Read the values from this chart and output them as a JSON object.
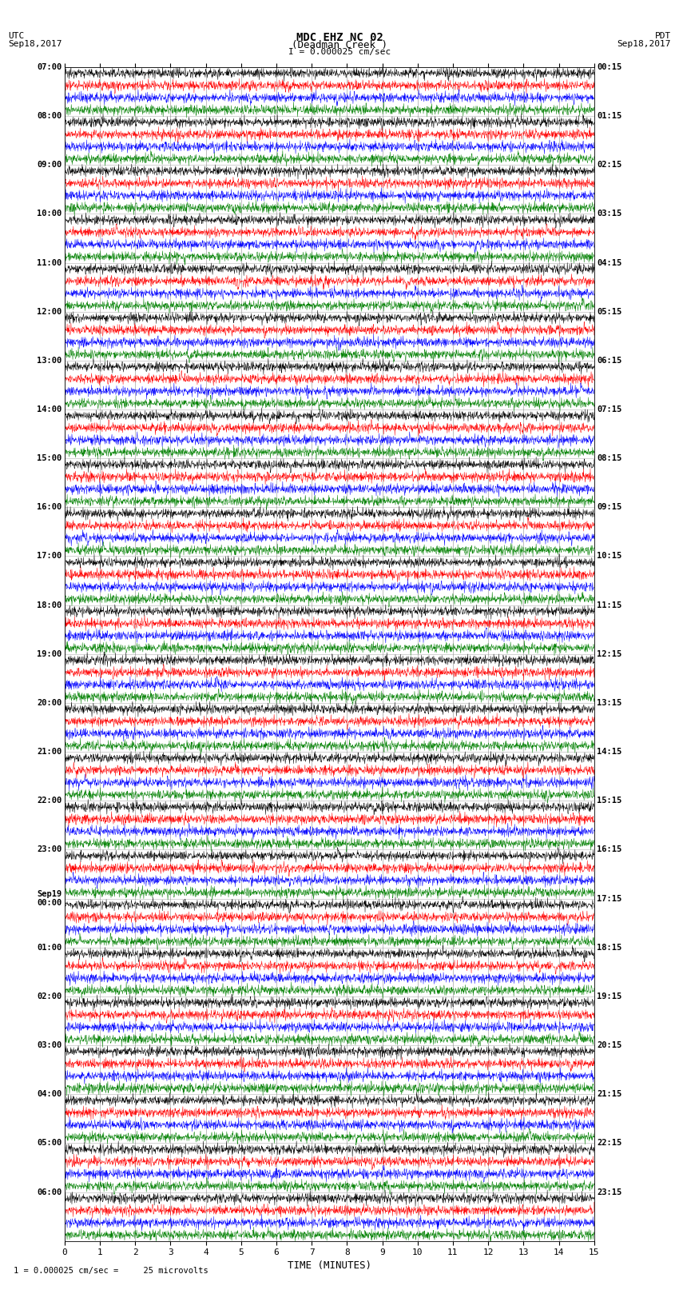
{
  "title_line1": "MDC EHZ NC 02",
  "title_line2": "(Deadman Creek )",
  "scale_text": "I = 0.000025 cm/sec",
  "utc_label": "UTC",
  "utc_date": "Sep18,2017",
  "pdt_label": "PDT",
  "pdt_date": "Sep18,2017",
  "xlabel": "TIME (MINUTES)",
  "footer_text": "1 = 0.000025 cm/sec =     25 microvolts",
  "left_times_labels": [
    "07:00",
    "08:00",
    "09:00",
    "10:00",
    "11:00",
    "12:00",
    "13:00",
    "14:00",
    "15:00",
    "16:00",
    "17:00",
    "18:00",
    "19:00",
    "20:00",
    "21:00",
    "22:00",
    "23:00",
    "Sep19\n00:00",
    "01:00",
    "02:00",
    "03:00",
    "04:00",
    "05:00",
    "06:00"
  ],
  "right_times_labels": [
    "00:15",
    "01:15",
    "02:15",
    "03:15",
    "04:15",
    "05:15",
    "06:15",
    "07:15",
    "08:15",
    "09:15",
    "10:15",
    "11:15",
    "12:15",
    "13:15",
    "14:15",
    "15:15",
    "16:15",
    "17:15",
    "18:15",
    "19:15",
    "20:15",
    "21:15",
    "22:15",
    "23:15"
  ],
  "colors": [
    "black",
    "red",
    "blue",
    "green"
  ],
  "n_hours": 24,
  "traces_per_hour": 4,
  "n_minutes": 15,
  "bg_color": "#ffffff",
  "grid_color": "#808080",
  "xticks": [
    0,
    1,
    2,
    3,
    4,
    5,
    6,
    7,
    8,
    9,
    10,
    11,
    12,
    13,
    14,
    15
  ],
  "figsize": [
    8.5,
    16.13
  ],
  "dpi": 100,
  "amplitude_profile": [
    0.06,
    0.07,
    0.07,
    0.06,
    0.07,
    0.07,
    0.08,
    0.07,
    0.08,
    0.08,
    0.09,
    0.08,
    0.09,
    0.09,
    0.1,
    0.09,
    0.1,
    0.1,
    0.11,
    0.1,
    0.11,
    0.11,
    0.12,
    0.11,
    0.12,
    0.13,
    0.14,
    0.13,
    0.15,
    0.18,
    0.2,
    0.18,
    0.22,
    0.25,
    0.28,
    0.25,
    0.28,
    0.3,
    0.32,
    0.3,
    0.35,
    0.4,
    0.5,
    0.4,
    0.6,
    0.65,
    0.55,
    0.5,
    0.7,
    0.75,
    0.8,
    0.7,
    0.75,
    0.8,
    0.75,
    0.7,
    0.75,
    0.8,
    0.75,
    0.7,
    0.65,
    0.7,
    0.65,
    0.6,
    0.55,
    0.6,
    0.55,
    0.5,
    0.5,
    0.55,
    0.5,
    0.45,
    0.4,
    0.45,
    0.4,
    0.35,
    0.35,
    0.4,
    0.35,
    0.3,
    0.3,
    0.35,
    0.3,
    0.25,
    0.4,
    0.45,
    0.5,
    0.45,
    0.55,
    0.6,
    0.65,
    0.6,
    0.7,
    0.75,
    0.8,
    0.75
  ]
}
